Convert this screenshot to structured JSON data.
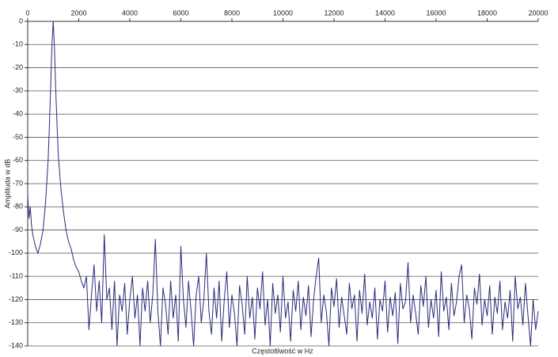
{
  "chart_data": {
    "type": "line",
    "x_label": "Częstotliwość w Hz",
    "y_label": "Amplituda w dB",
    "color": "#2a2a7a",
    "grid": true,
    "xlim": [
      0,
      20000
    ],
    "xticks": [
      0,
      2000,
      4000,
      6000,
      8000,
      10000,
      12000,
      14000,
      16000,
      18000,
      20000
    ],
    "ylim": [
      -140,
      0
    ],
    "yticks": [
      0,
      -10,
      -20,
      -30,
      -40,
      -50,
      -60,
      -70,
      -80,
      -90,
      -100,
      -110,
      -120,
      -130,
      -140
    ],
    "x": [
      0,
      50,
      100,
      150,
      200,
      300,
      400,
      500,
      600,
      700,
      800,
      850,
      900,
      950,
      1000,
      1050,
      1100,
      1150,
      1200,
      1300,
      1400,
      1500,
      1600,
      1700,
      1800,
      1900,
      2000,
      2100,
      2200,
      2300,
      2400,
      2500,
      2600,
      2700,
      2800,
      2900,
      3000,
      3100,
      3200,
      3300,
      3400,
      3500,
      3600,
      3700,
      3800,
      3900,
      4000,
      4100,
      4200,
      4300,
      4400,
      4500,
      4600,
      4700,
      4800,
      4900,
      5000,
      5100,
      5200,
      5300,
      5400,
      5500,
      5600,
      5700,
      5800,
      5900,
      6000,
      6100,
      6200,
      6300,
      6400,
      6500,
      6600,
      6700,
      6800,
      6900,
      7000,
      7100,
      7200,
      7300,
      7400,
      7500,
      7600,
      7700,
      7800,
      7900,
      8000,
      8100,
      8200,
      8300,
      8400,
      8500,
      8600,
      8700,
      8800,
      8900,
      9000,
      9100,
      9200,
      9300,
      9400,
      9500,
      9600,
      9700,
      9800,
      9900,
      10000,
      10100,
      10200,
      10300,
      10400,
      10500,
      10600,
      10700,
      10800,
      10900,
      11000,
      11100,
      11200,
      11300,
      11400,
      11500,
      11600,
      11700,
      11800,
      11900,
      12000,
      12100,
      12200,
      12300,
      12400,
      12500,
      12600,
      12700,
      12800,
      12900,
      13000,
      13100,
      13200,
      13300,
      13400,
      13500,
      13600,
      13700,
      13800,
      13900,
      14000,
      14100,
      14200,
      14300,
      14400,
      14500,
      14600,
      14700,
      14800,
      14900,
      15000,
      15100,
      15200,
      15300,
      15400,
      15500,
      15600,
      15700,
      15800,
      15900,
      16000,
      16100,
      16200,
      16300,
      16400,
      16500,
      16600,
      16700,
      16800,
      16900,
      17000,
      17100,
      17200,
      17300,
      17400,
      17500,
      17600,
      17700,
      17800,
      17900,
      18000,
      18100,
      18200,
      18300,
      18400,
      18500,
      18600,
      18700,
      18800,
      18900,
      19000,
      19100,
      19200,
      19300,
      19400,
      19500,
      19600,
      19700,
      19800,
      19900,
      20000
    ],
    "values": [
      -75,
      -85,
      -80,
      -88,
      -92,
      -97,
      -100,
      -96,
      -90,
      -78,
      -60,
      -45,
      -28,
      -10,
      0,
      -12,
      -30,
      -45,
      -58,
      -72,
      -82,
      -90,
      -95,
      -98,
      -103,
      -106,
      -108,
      -112,
      -115,
      -110,
      -133,
      -118,
      -105,
      -125,
      -112,
      -130,
      -92,
      -120,
      -115,
      -133,
      -112,
      -140,
      -118,
      -125,
      -113,
      -135,
      -120,
      -110,
      -128,
      -118,
      -140,
      -115,
      -125,
      -112,
      -130,
      -118,
      -94,
      -125,
      -140,
      -115,
      -122,
      -135,
      -112,
      -128,
      -118,
      -138,
      -97,
      -120,
      -132,
      -112,
      -125,
      -140,
      -118,
      -110,
      -130,
      -120,
      -100,
      -125,
      -135,
      -115,
      -128,
      -112,
      -138,
      -120,
      -108,
      -132,
      -118,
      -126,
      -140,
      -114,
      -122,
      -135,
      -110,
      -128,
      -119,
      -137,
      -115,
      -124,
      -108,
      -131,
      -120,
      -140,
      -113,
      -126,
      -118,
      -134,
      -110,
      -128,
      -121,
      -138,
      -116,
      -125,
      -112,
      -133,
      -119,
      -127,
      -114,
      -136,
      -120,
      -110,
      -102,
      -130,
      -118,
      -125,
      -140,
      -115,
      -123,
      -111,
      -132,
      -119,
      -127,
      -135,
      -113,
      -124,
      -118,
      -138,
      -116,
      -126,
      -109,
      -131,
      -121,
      -128,
      -115,
      -137,
      -120,
      -125,
      -112,
      -134,
      -119,
      -127,
      -117,
      -139,
      -113,
      -124,
      -121,
      -104,
      -130,
      -118,
      -126,
      -135,
      -114,
      -123,
      -110,
      -132,
      -120,
      -128,
      -116,
      -136,
      -108,
      -125,
      -119,
      -133,
      -113,
      -127,
      -121,
      -110,
      -105,
      -130,
      -118,
      -124,
      -137,
      -115,
      -122,
      -109,
      -131,
      -120,
      -127,
      -114,
      -135,
      -119,
      -126,
      -112,
      -133,
      -121,
      -128,
      -116,
      -138,
      -110,
      -124,
      -119,
      -131,
      -113,
      -127,
      -140,
      -120,
      -133,
      -125
    ]
  }
}
